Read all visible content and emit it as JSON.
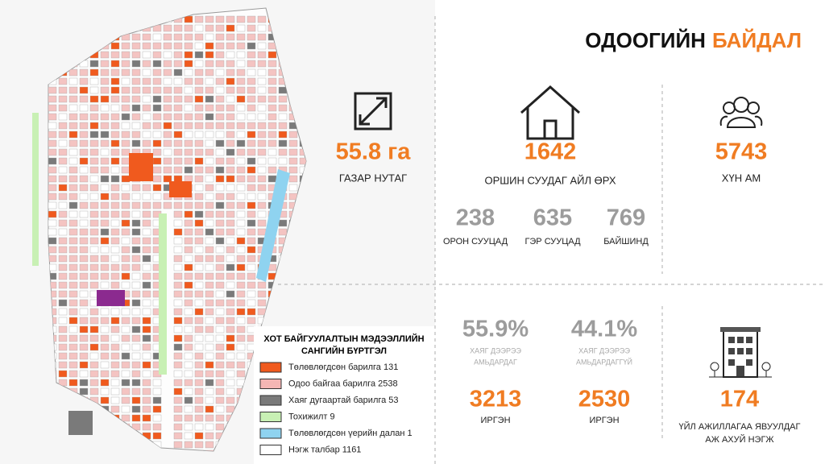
{
  "header": {
    "title_dark": "ОДООГИЙН",
    "title_accent": "БАЙДАЛ"
  },
  "area": {
    "value": "55.8 га",
    "label": "ГАЗАР НУТАГ"
  },
  "households": {
    "value": "1642",
    "label": "ОРШИН СУУДАГ АЙЛ ӨРХ",
    "breakdown": [
      {
        "value": "238",
        "label": "ОРОН СУУЦАД"
      },
      {
        "value": "635",
        "label": "ГЭР СУУЦАД"
      },
      {
        "value": "769",
        "label": "БАЙШИНД"
      }
    ]
  },
  "population": {
    "value": "5743",
    "label": "ХҮН АМ"
  },
  "residence": [
    {
      "percent": "55.9%",
      "label_lines": [
        "ХАЯГ ДЭЭРЭЭ",
        "АМЬДАРДАГ"
      ],
      "count": "3213",
      "count_label": "ИРГЭН"
    },
    {
      "percent": "44.1%",
      "label_lines": [
        "ХАЯГ ДЭЭРЭЭ",
        "АМЬДАРДАГГҮЙ"
      ],
      "count": "2530",
      "count_label": "ИРГЭН"
    }
  ],
  "business": {
    "value": "174",
    "label_lines": [
      "ҮЙЛ АЖИЛЛАГАА ЯВУУЛДАГ",
      "АЖ АХУЙ НЭГЖ"
    ]
  },
  "legend": {
    "title_lines": [
      "ХОТ БАЙГУУЛАЛТЫН МЭДЭЭЛЛИЙН",
      "САНГИЙН БҮРТГЭЛ"
    ],
    "items": [
      {
        "label": "Төлөвлөгдсөн барилга 131",
        "color": "#f05a1e"
      },
      {
        "label": "Одоо байгаа барилга 2538",
        "color": "#f4b6b4"
      },
      {
        "label": "Хаяг дугаартай барилга 53",
        "color": "#7a7a7a"
      },
      {
        "label": "Тохижилт 9",
        "color": "#c8f0b4"
      },
      {
        "label": "Төлөвлөгдсөн үерийн далан 1",
        "color": "#8fd3f0"
      },
      {
        "label": "Нэгж талбар 1161",
        "color": "#ffffff"
      }
    ]
  }
}
